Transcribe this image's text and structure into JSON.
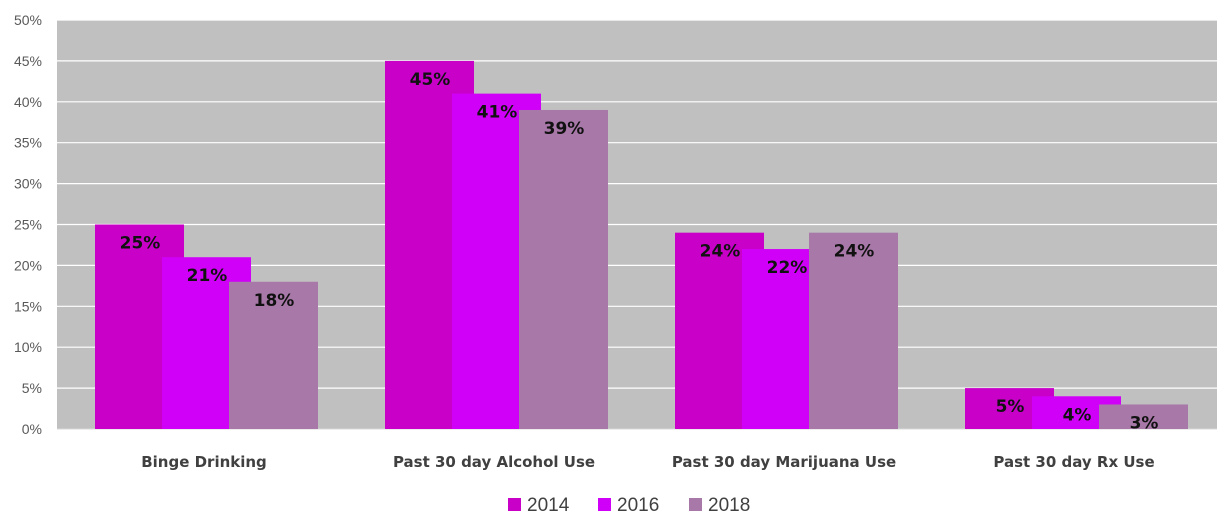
{
  "chart_data": {
    "type": "bar",
    "title": "",
    "xlabel": "",
    "ylabel": "",
    "categories": [
      "Binge Drinking",
      "Past 30 day Alcohol Use",
      "Past 30 day Marijuana Use",
      "Past 30 day Rx Use"
    ],
    "series": [
      {
        "name": "2014",
        "color": "#c800c8",
        "values": [
          25,
          45,
          24,
          5
        ],
        "labels": [
          "25%",
          "45%",
          "24%",
          "5%"
        ]
      },
      {
        "name": "2016",
        "color": "#d000f8",
        "values": [
          21,
          41,
          22,
          4
        ],
        "labels": [
          "21%",
          "41%",
          "22%",
          "4%"
        ]
      },
      {
        "name": "2018",
        "color": "#a878a8",
        "values": [
          18,
          39,
          24,
          3
        ],
        "labels": [
          "18%",
          "39%",
          "24%",
          "3%"
        ]
      }
    ],
    "ylim": [
      0,
      50
    ],
    "yticks": [
      0,
      5,
      10,
      15,
      20,
      25,
      30,
      35,
      40,
      45,
      50
    ],
    "ytick_labels": [
      "0%",
      "5%",
      "10%",
      "15%",
      "20%",
      "25%",
      "30%",
      "35%",
      "40%",
      "45%",
      "50%"
    ],
    "grid": true,
    "legend_position": "bottom",
    "plot_background": "#c0c0c0",
    "grid_color": "#ffffff"
  }
}
